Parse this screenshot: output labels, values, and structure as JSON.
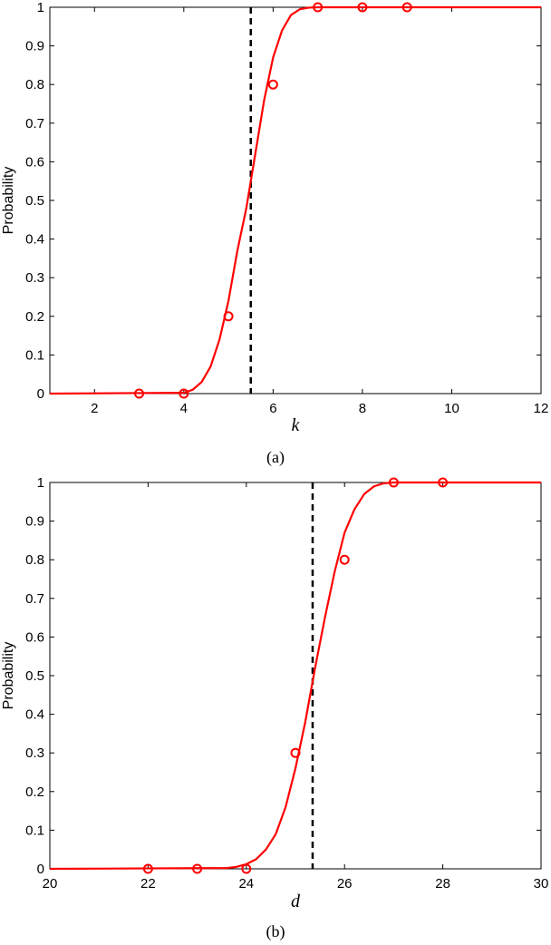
{
  "chart_data": [
    {
      "type": "line",
      "caption": "(a)",
      "xlabel": "k",
      "ylabel": "Probability",
      "xlim": [
        1,
        12
      ],
      "ylim": [
        0,
        1
      ],
      "xticks": [
        2,
        4,
        6,
        8,
        10,
        12
      ],
      "yticks": [
        0,
        0.1,
        0.2,
        0.3,
        0.4,
        0.5,
        0.6,
        0.7,
        0.8,
        0.9,
        1
      ],
      "ytick_labels": [
        "0",
        "0.1",
        "0.2",
        "0.3",
        "0.4",
        "0.5",
        "0.6",
        "0.7",
        "0.8",
        "0.9",
        "1"
      ],
      "series": [
        {
          "kind": "curve",
          "color": "#ff0000",
          "x": [
            1,
            4.0,
            4.2,
            4.4,
            4.6,
            4.8,
            5.0,
            5.2,
            5.4,
            5.6,
            5.8,
            6.0,
            6.2,
            6.4,
            6.6,
            6.8,
            7.0,
            12
          ],
          "y": [
            0,
            0.002,
            0.01,
            0.03,
            0.07,
            0.14,
            0.24,
            0.37,
            0.48,
            0.62,
            0.76,
            0.87,
            0.94,
            0.98,
            0.995,
            0.999,
            1.0,
            1.0
          ]
        },
        {
          "kind": "markers",
          "color": "#ff0000",
          "x": [
            3,
            4,
            5,
            6,
            7,
            8,
            9
          ],
          "y": [
            0,
            0,
            0.2,
            0.8,
            1,
            1,
            1
          ]
        }
      ],
      "vline": {
        "x": 5.5,
        "color": "#000000",
        "style": "dashed"
      }
    },
    {
      "type": "line",
      "caption": "(b)",
      "xlabel": "d",
      "ylabel": "Probability",
      "xlim": [
        20,
        30
      ],
      "ylim": [
        0,
        1
      ],
      "xticks": [
        20,
        22,
        24,
        26,
        28,
        30
      ],
      "yticks": [
        0,
        0.1,
        0.2,
        0.3,
        0.4,
        0.5,
        0.6,
        0.7,
        0.8,
        0.9,
        1
      ],
      "ytick_labels": [
        "0",
        "0.1",
        "0.2",
        "0.3",
        "0.4",
        "0.5",
        "0.6",
        "0.7",
        "0.8",
        "0.9",
        "1"
      ],
      "series": [
        {
          "kind": "curve",
          "color": "#ff0000",
          "x": [
            20,
            23.6,
            23.8,
            24.0,
            24.2,
            24.4,
            24.6,
            24.8,
            25.0,
            25.2,
            25.4,
            25.6,
            25.8,
            26.0,
            26.2,
            26.4,
            26.6,
            26.8,
            27.0,
            30
          ],
          "y": [
            0,
            0.002,
            0.005,
            0.012,
            0.025,
            0.05,
            0.09,
            0.16,
            0.26,
            0.38,
            0.52,
            0.65,
            0.77,
            0.87,
            0.93,
            0.97,
            0.99,
            0.998,
            1.0,
            1.0
          ]
        },
        {
          "kind": "markers",
          "color": "#ff0000",
          "x": [
            22,
            23,
            24,
            25,
            26,
            27,
            28
          ],
          "y": [
            0,
            0,
            0,
            0.3,
            0.8,
            1,
            1
          ]
        }
      ],
      "vline": {
        "x": 25.35,
        "color": "#000000",
        "style": "dashed"
      }
    }
  ]
}
